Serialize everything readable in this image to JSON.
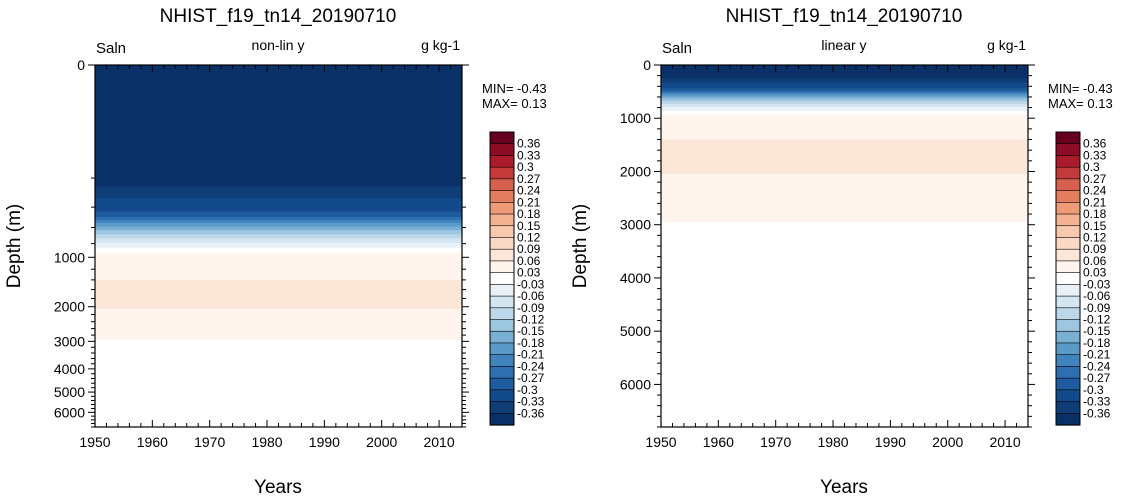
{
  "chart_data": [
    {
      "type": "heatmap",
      "title": "NHIST_f19_tn14_20190710",
      "left_label": "Saln",
      "center_label": "non-lin y",
      "right_label": "g kg-1",
      "xlabel": "Years",
      "ylabel": "Depth (m)",
      "xlim": [
        1950,
        2014
      ],
      "ylim": [
        0,
        6800
      ],
      "y_scale": "non-linear",
      "x_ticks": [
        "1950",
        "1960",
        "1970",
        "1980",
        "1990",
        "2000",
        "2010"
      ],
      "y_ticks": [
        "0",
        "1000",
        "2000",
        "3000",
        "4000",
        "5000",
        "6000"
      ],
      "y_tick_values": [
        0,
        1000,
        2000,
        3000,
        4000,
        5000,
        6000
      ],
      "min_label": "MIN= -0.43",
      "max_label": "MAX=  0.13",
      "contour_layers": [
        {
          "level": -0.36,
          "top": 0,
          "bottom": 250
        },
        {
          "level": -0.33,
          "top": 250,
          "bottom": 330
        },
        {
          "level": -0.3,
          "top": 330,
          "bottom": 440
        },
        {
          "level": -0.27,
          "top": 440,
          "bottom": 490
        },
        {
          "level": -0.24,
          "top": 490,
          "bottom": 520
        },
        {
          "level": -0.21,
          "top": 520,
          "bottom": 550
        },
        {
          "level": -0.18,
          "top": 550,
          "bottom": 590
        },
        {
          "level": -0.15,
          "top": 590,
          "bottom": 630
        },
        {
          "level": -0.12,
          "top": 630,
          "bottom": 680
        },
        {
          "level": -0.09,
          "top": 680,
          "bottom": 730
        },
        {
          "level": -0.06,
          "top": 730,
          "bottom": 790
        },
        {
          "level": -0.03,
          "top": 790,
          "bottom": 860
        },
        {
          "level": 0.03,
          "top": 860,
          "bottom": 930
        },
        {
          "level": 0.06,
          "top": 930,
          "bottom": 1400
        },
        {
          "level": 0.09,
          "top": 1400,
          "bottom": 2050
        },
        {
          "level": 0.06,
          "top": 2050,
          "bottom": 2950
        },
        {
          "level": 0.03,
          "top": 2950,
          "bottom": 3450
        }
      ]
    },
    {
      "type": "heatmap",
      "title": "NHIST_f19_tn14_20190710",
      "left_label": "Saln",
      "center_label": "linear y",
      "right_label": "g kg-1",
      "xlabel": "Years",
      "ylabel": "Depth (m)",
      "xlim": [
        1950,
        2014
      ],
      "ylim": [
        0,
        6800
      ],
      "y_scale": "linear",
      "x_ticks": [
        "1950",
        "1960",
        "1970",
        "1980",
        "1990",
        "2000",
        "2010"
      ],
      "y_ticks": [
        "0",
        "1000",
        "2000",
        "3000",
        "4000",
        "5000",
        "6000"
      ],
      "y_tick_values": [
        0,
        1000,
        2000,
        3000,
        4000,
        5000,
        6000
      ],
      "min_label": "MIN= -0.43",
      "max_label": "MAX=  0.13",
      "contour_layers": [
        {
          "level": -0.36,
          "top": 0,
          "bottom": 250
        },
        {
          "level": -0.33,
          "top": 250,
          "bottom": 330
        },
        {
          "level": -0.3,
          "top": 330,
          "bottom": 440
        },
        {
          "level": -0.27,
          "top": 440,
          "bottom": 490
        },
        {
          "level": -0.24,
          "top": 490,
          "bottom": 520
        },
        {
          "level": -0.21,
          "top": 520,
          "bottom": 550
        },
        {
          "level": -0.18,
          "top": 550,
          "bottom": 590
        },
        {
          "level": -0.15,
          "top": 590,
          "bottom": 630
        },
        {
          "level": -0.12,
          "top": 630,
          "bottom": 680
        },
        {
          "level": -0.09,
          "top": 680,
          "bottom": 730
        },
        {
          "level": -0.06,
          "top": 730,
          "bottom": 790
        },
        {
          "level": -0.03,
          "top": 790,
          "bottom": 860
        },
        {
          "level": 0.03,
          "top": 860,
          "bottom": 930
        },
        {
          "level": 0.06,
          "top": 930,
          "bottom": 1400
        },
        {
          "level": 0.09,
          "top": 1400,
          "bottom": 2050
        },
        {
          "level": 0.06,
          "top": 2050,
          "bottom": 2950
        },
        {
          "level": 0.03,
          "top": 2950,
          "bottom": 3450
        }
      ]
    }
  ],
  "colorbar": {
    "labels": [
      "0.36",
      "0.33",
      "0.3",
      "0.27",
      "0.24",
      "0.21",
      "0.18",
      "0.15",
      "0.12",
      "0.09",
      "0.06",
      "0.03",
      "-0.03",
      "-0.06",
      "-0.09",
      "-0.12",
      "-0.15",
      "-0.18",
      "-0.21",
      "-0.24",
      "-0.27",
      "-0.3",
      "-0.33",
      "-0.36"
    ],
    "colors": [
      "#67001f",
      "#8c0d25",
      "#ac1b2c",
      "#c43a3a",
      "#d6604d",
      "#e27d60",
      "#ee9b78",
      "#f4b293",
      "#f8c9ad",
      "#fad9c4",
      "#fce6d8",
      "#fff4ee",
      "#ffffff",
      "#e8f1f7",
      "#d3e5f0",
      "#bcd7ea",
      "#9dc6e0",
      "#79b0d4",
      "#5a9ac9",
      "#4184bd",
      "#2d6fb0",
      "#1e5c9f",
      "#134a8b",
      "#0f3d76",
      "#093167"
    ]
  }
}
